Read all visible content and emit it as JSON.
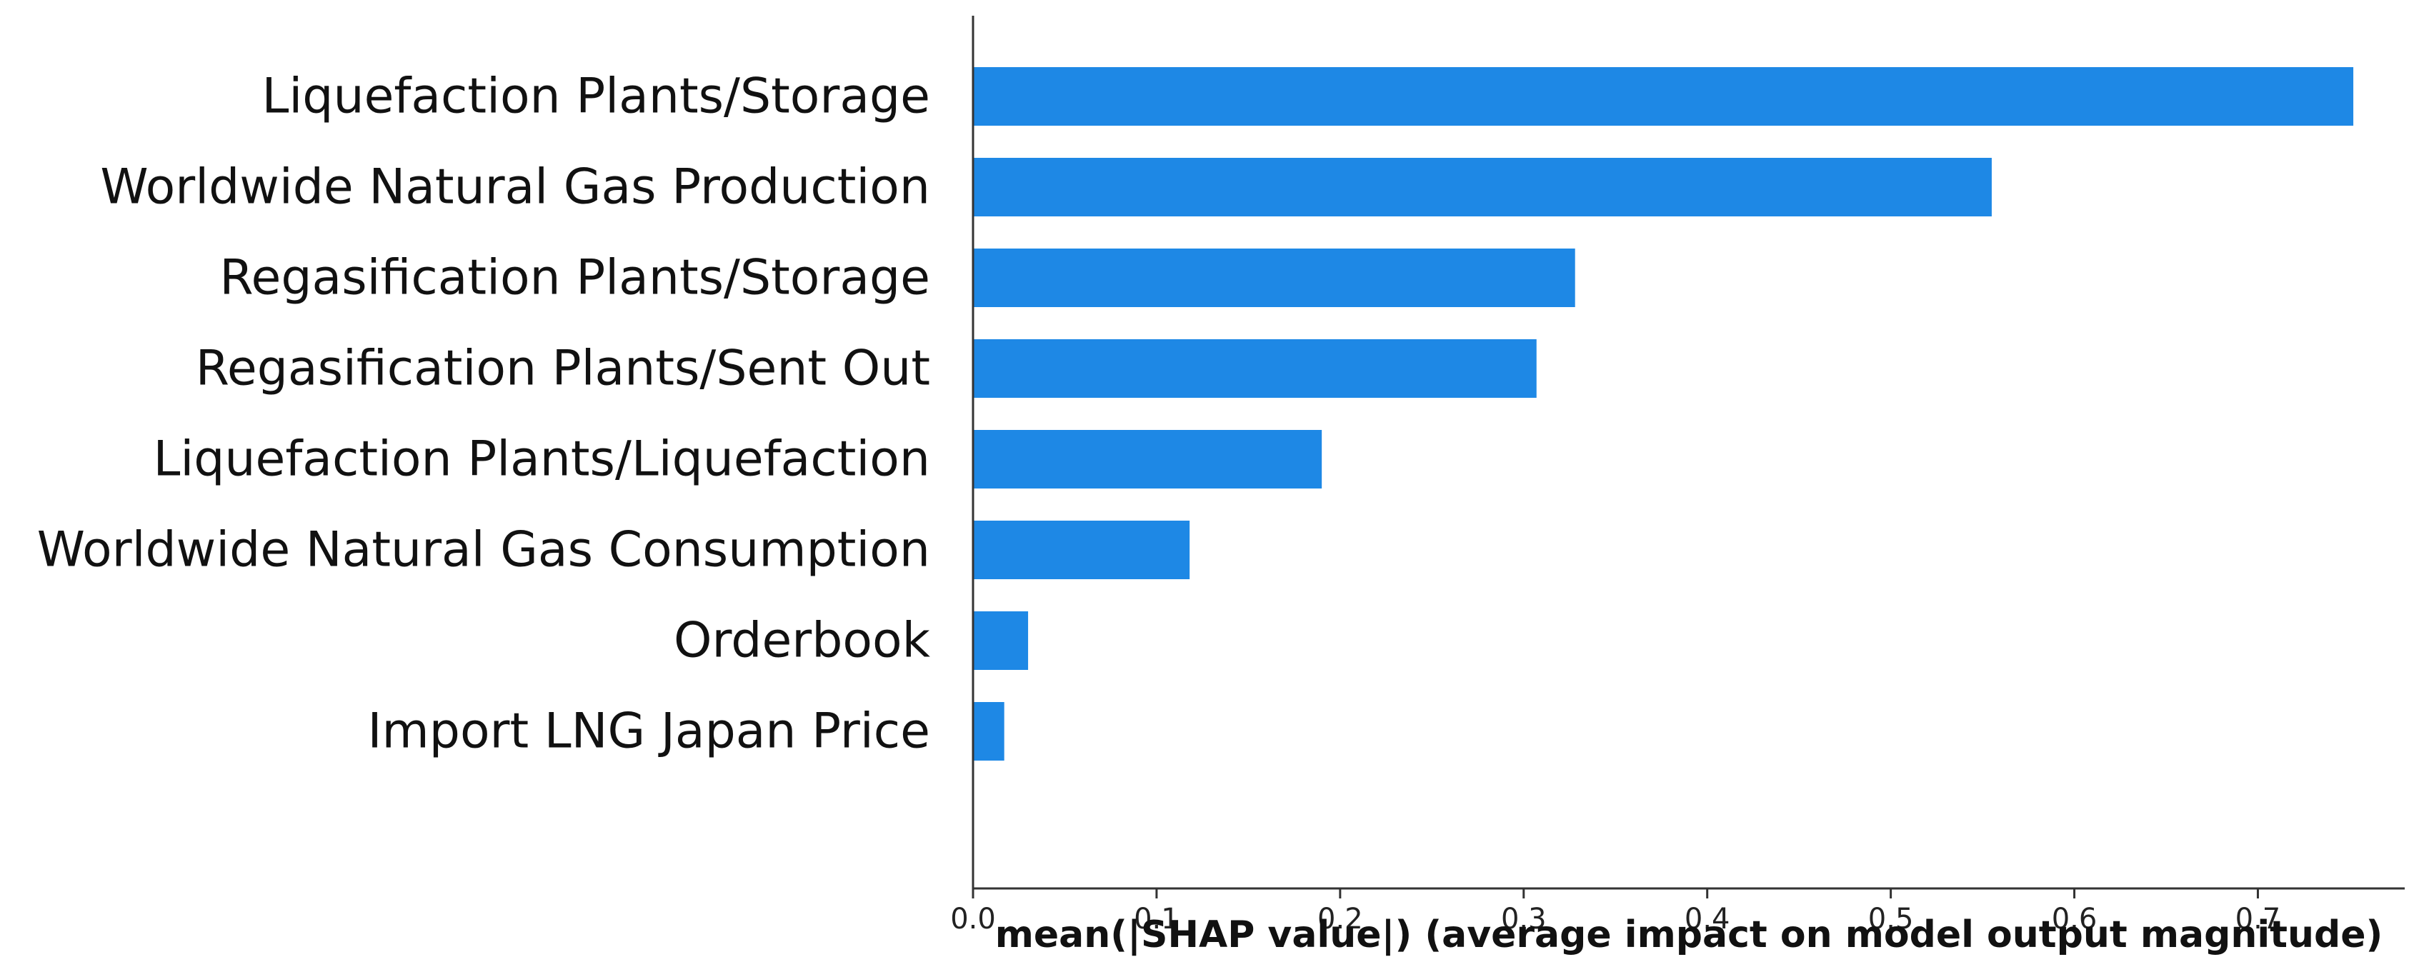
{
  "chart_data": {
    "type": "bar",
    "orientation": "horizontal",
    "categories": [
      "Liquefaction Plants/Storage",
      "Worldwide Natural Gas Production",
      "Regasification Plants/Storage",
      "Regasification Plants/Sent Out",
      "Liquefaction Plants/Liquefaction",
      "Worldwide Natural Gas Consumption",
      "Orderbook",
      "Import LNG Japan Price"
    ],
    "values": [
      0.752,
      0.555,
      0.328,
      0.307,
      0.19,
      0.118,
      0.03,
      0.017
    ],
    "xlabel": "mean(|SHAP value|) (average impact on model output magnitude)",
    "ylabel": "",
    "xlim": [
      0,
      0.78
    ],
    "xticks": [
      "0.0",
      "0.1",
      "0.2",
      "0.3",
      "0.4",
      "0.5",
      "0.6",
      "0.7"
    ],
    "bar_color": "#1e88e5",
    "grid": false
  }
}
